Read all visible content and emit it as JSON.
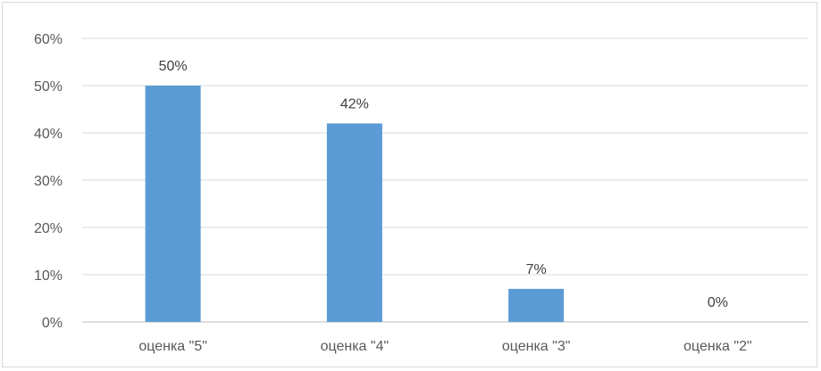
{
  "chart_data": {
    "type": "bar",
    "title": "",
    "xlabel": "",
    "ylabel": "",
    "categories": [
      "оценка \"5\"",
      "оценка \"4\"",
      "оценка \"3\"",
      "оценка \"2\""
    ],
    "values": [
      50,
      42,
      7,
      0
    ],
    "data_labels": [
      "50%",
      "42%",
      "7%",
      "0%"
    ],
    "ylim": [
      0,
      60
    ],
    "yticks": [
      0,
      10,
      20,
      30,
      40,
      50,
      60
    ],
    "ytick_labels": [
      "0%",
      "10%",
      "20%",
      "30%",
      "40%",
      "50%",
      "60%"
    ],
    "grid": true,
    "legend": "none",
    "colors": {
      "bar": "#5b9bd5",
      "grid": "#d9d9d9",
      "axis": "#bfbfbf"
    }
  }
}
